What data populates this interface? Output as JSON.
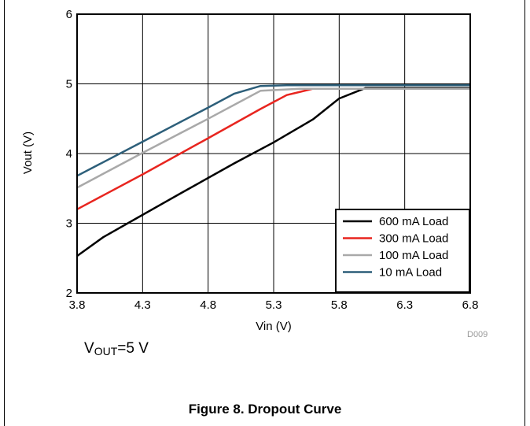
{
  "annotation": {
    "prefix": "V",
    "subscript": "OUT",
    "suffix": "=5 V"
  },
  "figure_caption": "Figure 8. Dropout Curve",
  "chart_data": {
    "type": "line",
    "xlabel": "Vin (V)",
    "ylabel": "Vout (V)",
    "xlim": [
      3.8,
      6.8
    ],
    "ylim": [
      2,
      6
    ],
    "xticks": [
      3.8,
      4.3,
      4.8,
      5.3,
      5.8,
      6.3,
      6.8
    ],
    "yticks": [
      2,
      3,
      4,
      5,
      6
    ],
    "xtick_labels": [
      "3.8",
      "4.3",
      "4.8",
      "5.3",
      "5.8",
      "6.3",
      "6.8"
    ],
    "ytick_labels": [
      "2",
      "3",
      "4",
      "5",
      "6"
    ],
    "grid": true,
    "legend_position": "bottom-right",
    "figure_id": "D009",
    "series": [
      {
        "name": "600 mA Load",
        "color": "#000000",
        "x": [
          3.8,
          4.0,
          4.3,
          4.6,
          5.0,
          5.3,
          5.6,
          5.8,
          6.0,
          6.8
        ],
        "y": [
          2.53,
          2.8,
          3.12,
          3.44,
          3.86,
          4.16,
          4.49,
          4.79,
          4.94,
          4.94
        ]
      },
      {
        "name": "300 mA Load",
        "color": "#e8251f",
        "x": [
          3.8,
          4.3,
          4.8,
          5.2,
          5.4,
          5.6,
          6.8
        ],
        "y": [
          3.2,
          3.7,
          4.22,
          4.64,
          4.84,
          4.93,
          4.93
        ]
      },
      {
        "name": "100 mA Load",
        "color": "#a9a9a9",
        "x": [
          3.8,
          4.3,
          4.8,
          5.2,
          5.5,
          6.8
        ],
        "y": [
          3.51,
          4.01,
          4.5,
          4.9,
          4.93,
          4.93
        ]
      },
      {
        "name": "10 mA Load",
        "color": "#2d5f7a",
        "x": [
          3.8,
          4.3,
          4.8,
          5.0,
          5.2,
          5.4,
          6.8
        ],
        "y": [
          3.68,
          4.17,
          4.66,
          4.86,
          4.97,
          4.98,
          4.98
        ]
      }
    ]
  }
}
